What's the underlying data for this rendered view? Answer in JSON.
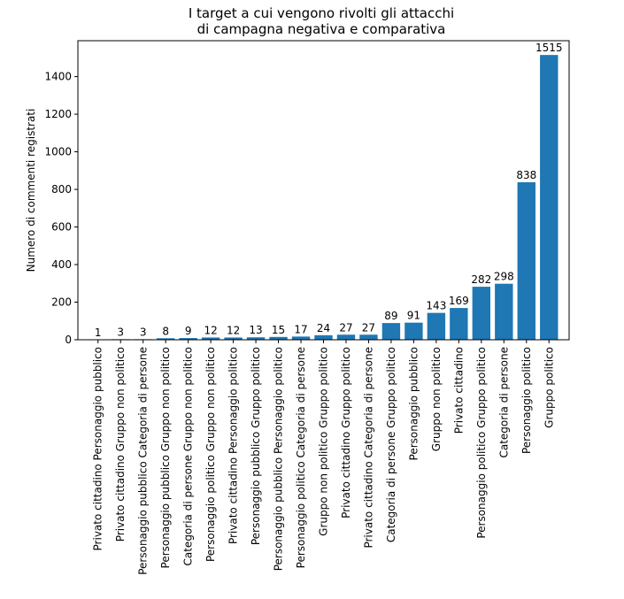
{
  "chart_data": {
    "type": "bar",
    "title": [
      "I target a cui vengono rivolti gli attacchi",
      "di campagna negativa e comparativa"
    ],
    "xlabel": "",
    "ylabel": "Numero di commenti registrati",
    "ylim": [
      0,
      1591
    ],
    "yticks": [
      0,
      200,
      400,
      600,
      800,
      1000,
      1200,
      1400
    ],
    "bar_color": "#1f77b4",
    "grid": false,
    "categories": [
      "Privato cittadino Personaggio pubblico",
      "Privato cittadino Gruppo non politico",
      "Personaggio pubblico Categoria di persone",
      "Personaggio pubblico Gruppo non politico",
      "Categoria di persone Gruppo non politico",
      "Personaggio politico Gruppo non politico",
      "Privato cittadino Personaggio politico",
      "Personaggio pubblico Gruppo politico",
      "Personaggio pubblico Personaggio politico",
      "Personaggio politico Categoria di persone",
      "Gruppo non politico Gruppo politico",
      "Privato cittadino Gruppo politico",
      "Privato cittadino Categoria di persone",
      "Categoria di persone Gruppo politico",
      "Personaggio pubblico",
      "Gruppo non politico",
      "Privato cittadino",
      "Personaggio politico Gruppo politico",
      "Categoria di persone",
      "Personaggio politico",
      "Gruppo politico"
    ],
    "values": [
      1,
      3,
      3,
      8,
      9,
      12,
      12,
      13,
      15,
      17,
      24,
      27,
      27,
      89,
      91,
      143,
      169,
      282,
      298,
      838,
      1515
    ]
  }
}
